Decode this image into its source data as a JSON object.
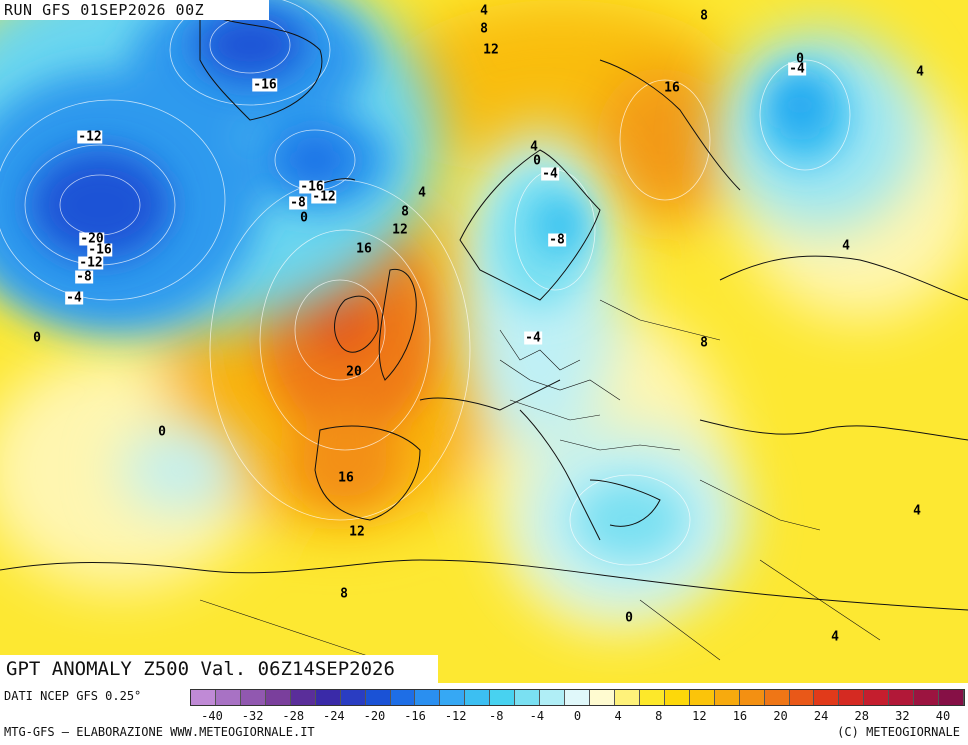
{
  "run_label": "RUN GFS 01SEP2026 00Z",
  "title": "GPT ANOMALY Z500 Val. 06Z14SEP2026",
  "footer": {
    "source": "DATI NCEP GFS 0.25°",
    "credit": "MTG-GFS — ELABORAZIONE WWW.METEOGIORNALE.IT",
    "copyright": "(C) METEOGIORNALE"
  },
  "colorbar": {
    "colors": [
      "#c08ad6",
      "#a872c4",
      "#9158b0",
      "#7a3f9c",
      "#5a2e9a",
      "#3a2aa8",
      "#2a3dc2",
      "#1a52d6",
      "#1e6ee6",
      "#2a8ff0",
      "#36a8f4",
      "#3cbff2",
      "#48d2f0",
      "#7ae0f2",
      "#b0eef6",
      "#e0f8fa",
      "#fffbd0",
      "#fff27a",
      "#fde82a",
      "#fdd80a",
      "#fbc40a",
      "#f7aa0e",
      "#f39012",
      "#ef7616",
      "#e95818",
      "#e13a1a",
      "#d52a22",
      "#c51e2e",
      "#b21838",
      "#9c1440",
      "#861046"
    ],
    "ticks": [
      "-40",
      "-32",
      "-28",
      "-24",
      "-20",
      "-16",
      "-12",
      "-8",
      "-4",
      "0",
      "4",
      "8",
      "12",
      "16",
      "20",
      "24",
      "28",
      "32",
      "40"
    ]
  },
  "contour_labels": [
    "4",
    "8",
    "8",
    "12",
    "0",
    "-4",
    "4",
    "-16",
    "16",
    "-12",
    "-16",
    "-8",
    "-12",
    "0",
    "4",
    "8",
    "12",
    "-20",
    "-16",
    "-12",
    "-8",
    "-4",
    "4",
    "0",
    "-4",
    "-8",
    "16",
    "-4",
    "4",
    "0",
    "20",
    "8",
    "16",
    "12",
    "8",
    "0",
    "4",
    "4"
  ]
}
